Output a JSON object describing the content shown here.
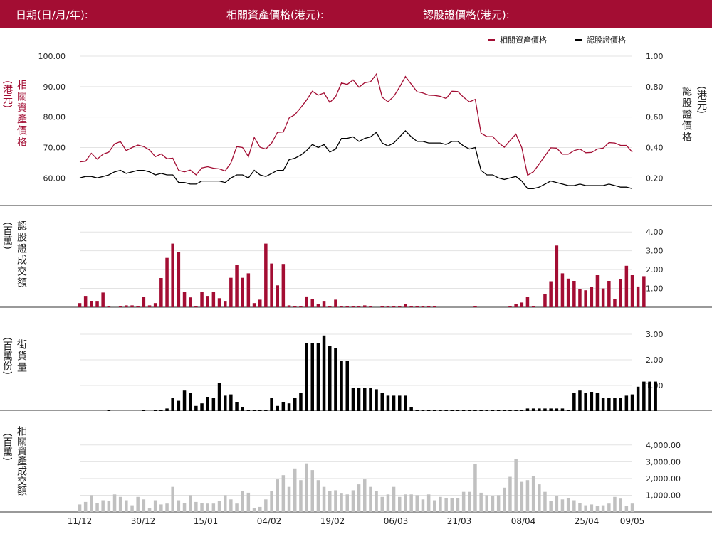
{
  "header": {
    "date_label": "日期(日/月/年):",
    "underlying_label": "相關資產價格(港元):",
    "warrant_label": "認股證價格(港元):"
  },
  "colors": {
    "brand": "#a30d33",
    "underlying": "#a30d33",
    "warrant": "#000000",
    "outstanding": "#000000",
    "underlying_turnover": "#c0c0c0"
  },
  "labels": {
    "panel1_left_main": "相關資產價格",
    "panel1_left_unit": "(港元)",
    "panel1_right_main": "認股證價格",
    "panel1_right_unit": "(港元)",
    "panel2_main": "認股證成交額",
    "panel2_unit": "(百萬)",
    "panel3_main": "街貨量",
    "panel3_unit": "(百萬份)",
    "panel4_main": "相關資產成交額",
    "panel4_unit": "(百萬)"
  },
  "chart_data": [
    {
      "type": "line",
      "legend": [
        "相關資產價格",
        "認股證價格"
      ],
      "legend_position": "top-right",
      "x_ticks": [
        "11/12",
        "30/12",
        "15/01",
        "04/02",
        "19/02",
        "06/03",
        "21/03",
        "08/04",
        "25/04",
        "09/05"
      ],
      "y_left": {
        "ticks": [
          "60.00",
          "70.00",
          "80.00",
          "90.00",
          "100.00"
        ],
        "ylim": [
          54,
          100
        ]
      },
      "y_right": {
        "ticks": [
          "0.20",
          "0.40",
          "0.60",
          "0.80",
          "1.00"
        ],
        "ylim": [
          0.08,
          1.0
        ]
      },
      "series": [
        {
          "name": "相關資產價格",
          "axis": "left",
          "values": [
            65.3,
            65.5,
            68.1,
            66.2,
            67.8,
            68.5,
            71.2,
            71.9,
            69.0,
            70.0,
            70.8,
            70.3,
            69.2,
            67.0,
            67.9,
            66.3,
            66.5,
            62.5,
            62.0,
            62.6,
            61.0,
            63.3,
            63.7,
            63.2,
            63.0,
            62.3,
            65.0,
            70.3,
            70.0,
            67.0,
            73.3,
            70.1,
            69.5,
            71.5,
            75.0,
            75.1,
            79.7,
            80.8,
            83.1,
            85.6,
            88.5,
            87.2,
            87.9,
            84.8,
            86.7,
            91.2,
            90.7,
            92.2,
            89.8,
            91.3,
            91.6,
            94.1,
            86.5,
            85.0,
            86.8,
            89.9,
            93.3,
            90.8,
            88.3,
            87.9,
            87.2,
            87.1,
            86.8,
            86.1,
            88.5,
            88.4,
            86.5,
            85.0,
            85.8,
            74.7,
            73.6,
            73.6,
            71.6,
            70.1,
            72.3,
            74.4,
            70.0,
            60.9,
            62.0,
            64.6,
            67.3,
            69.9,
            69.8,
            67.8,
            67.8,
            69.0,
            69.5,
            68.3,
            68.4,
            69.5,
            69.8,
            71.6,
            71.5,
            70.7,
            70.7,
            68.5
          ]
        },
        {
          "name": "認股證價格",
          "axis": "right",
          "values": [
            0.2,
            0.21,
            0.21,
            0.2,
            0.21,
            0.22,
            0.24,
            0.25,
            0.23,
            0.24,
            0.25,
            0.25,
            0.24,
            0.22,
            0.23,
            0.22,
            0.22,
            0.17,
            0.17,
            0.16,
            0.16,
            0.18,
            0.18,
            0.18,
            0.18,
            0.17,
            0.2,
            0.22,
            0.22,
            0.2,
            0.25,
            0.22,
            0.21,
            0.23,
            0.25,
            0.25,
            0.32,
            0.33,
            0.35,
            0.38,
            0.42,
            0.4,
            0.42,
            0.37,
            0.39,
            0.46,
            0.46,
            0.47,
            0.44,
            0.46,
            0.47,
            0.5,
            0.43,
            0.41,
            0.43,
            0.47,
            0.51,
            0.47,
            0.44,
            0.44,
            0.43,
            0.43,
            0.43,
            0.42,
            0.44,
            0.44,
            0.41,
            0.39,
            0.4,
            0.25,
            0.22,
            0.22,
            0.2,
            0.19,
            0.2,
            0.21,
            0.18,
            0.13,
            0.13,
            0.14,
            0.16,
            0.18,
            0.17,
            0.16,
            0.15,
            0.15,
            0.16,
            0.15,
            0.15,
            0.15,
            0.15,
            0.16,
            0.15,
            0.14,
            0.14,
            0.13
          ]
        }
      ]
    },
    {
      "type": "bar",
      "title": "認股證成交額",
      "y_ticks": [
        "1.00",
        "2.00",
        "3.00",
        "4.00"
      ],
      "ylim": [
        0,
        4.5
      ],
      "values": [
        0.22,
        0.6,
        0.31,
        0.3,
        0.78,
        0.05,
        0,
        0.05,
        0.1,
        0.1,
        0.05,
        0.55,
        0.1,
        0.22,
        1.55,
        2.62,
        3.38,
        2.95,
        0.8,
        0.52,
        0.05,
        0.8,
        0.6,
        0.81,
        0.48,
        0.3,
        1.56,
        2.25,
        1.56,
        1.8,
        0.22,
        0.4,
        3.38,
        2.32,
        1.16,
        2.3,
        0.1,
        0.05,
        0.05,
        0.57,
        0.44,
        0.16,
        0.3,
        0.05,
        0.4,
        0.05,
        0.05,
        0.05,
        0.05,
        0.1,
        0.05,
        0,
        0.05,
        0.05,
        0.05,
        0.05,
        0.15,
        0.05,
        0.05,
        0.05,
        0.05,
        0.03,
        0,
        0,
        0,
        0,
        0,
        0,
        0.05,
        0,
        0,
        0,
        0,
        0,
        0.05,
        0.15,
        0.25,
        0.55,
        0.05,
        0,
        0.7,
        1.38,
        3.28,
        1.8,
        1.52,
        1.4,
        0.95,
        0.9,
        1.08,
        1.7,
        1.0,
        1.4,
        0.45,
        1.5,
        2.2,
        1.7,
        1.1,
        1.65
      ]
    },
    {
      "type": "bar",
      "title": "街貨量",
      "y_ticks": [
        "1.00",
        "2.00",
        "3.00"
      ],
      "ylim": [
        0,
        3.0
      ],
      "values": [
        0,
        0,
        0,
        0,
        0,
        0.05,
        0,
        0,
        0,
        0,
        0,
        0.05,
        0,
        0.05,
        0.05,
        0.1,
        0.5,
        0.4,
        0.8,
        0.7,
        0.2,
        0.3,
        0.55,
        0.5,
        1.1,
        0.6,
        0.65,
        0.35,
        0.15,
        0.05,
        0.05,
        0.05,
        0.05,
        0.5,
        0.2,
        0.35,
        0.3,
        0.5,
        0.7,
        2.65,
        2.65,
        2.65,
        2.95,
        2.55,
        2.45,
        1.95,
        1.95,
        0.9,
        0.9,
        0.9,
        0.9,
        0.85,
        0.7,
        0.6,
        0.6,
        0.6,
        0.6,
        0.15,
        0.05,
        0.05,
        0.05,
        0.05,
        0.05,
        0.05,
        0.05,
        0.05,
        0.05,
        0.05,
        0.05,
        0.05,
        0.05,
        0.05,
        0.05,
        0.05,
        0.05,
        0.05,
        0.05,
        0.1,
        0.1,
        0.1,
        0.1,
        0.1,
        0.1,
        0.1,
        0.05,
        0.7,
        0.8,
        0.7,
        0.75,
        0.7,
        0.5,
        0.5,
        0.5,
        0.5,
        0.6,
        0.65,
        0.95,
        1.15,
        1.15,
        1.15
      ]
    },
    {
      "type": "bar",
      "title": "相關資產成交額",
      "y_ticks": [
        "1,000.00",
        "2,000.00",
        "3,000.00",
        "4,000.00"
      ],
      "ylim": [
        0,
        4500
      ],
      "values": [
        450,
        600,
        1000,
        550,
        700,
        650,
        1050,
        900,
        700,
        400,
        900,
        750,
        250,
        700,
        450,
        500,
        1500,
        700,
        550,
        1000,
        600,
        550,
        500,
        500,
        650,
        1000,
        750,
        500,
        1250,
        1150,
        250,
        300,
        750,
        1250,
        1950,
        2200,
        1500,
        2600,
        1900,
        2900,
        2500,
        1900,
        1500,
        1250,
        1300,
        1100,
        1050,
        1300,
        1650,
        1950,
        1500,
        1250,
        900,
        1050,
        1500,
        900,
        1050,
        1050,
        1000,
        750,
        1050,
        700,
        900,
        850,
        850,
        850,
        1200,
        1200,
        2850,
        1150,
        1000,
        950,
        1000,
        1450,
        2100,
        3150,
        1800,
        1900,
        2150,
        1650,
        1200,
        650,
        950,
        750,
        850,
        700,
        550,
        400,
        450,
        350,
        400,
        500,
        900,
        800,
        350,
        500
      ]
    }
  ]
}
